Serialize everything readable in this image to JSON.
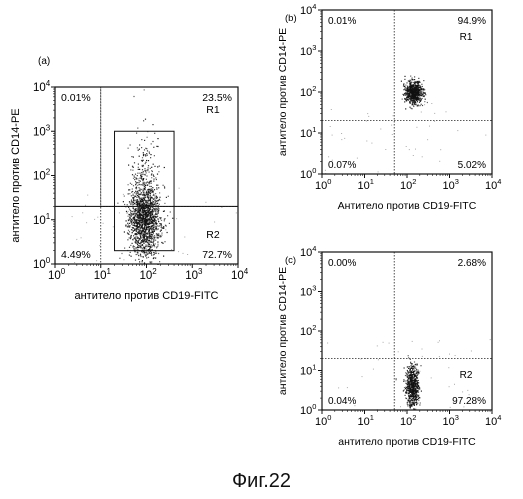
{
  "caption": "Фиг.22",
  "chart_data": [
    {
      "type": "scatter",
      "panel_label": "(a)",
      "xlabel": "антитело против CD19-FITC",
      "ylabel": "антитело против CD14-PE",
      "x_scale": "log",
      "y_scale": "log",
      "xlim": [
        1,
        10000
      ],
      "ylim": [
        1,
        10000
      ],
      "x_ticks": [
        "10^0",
        "10^1",
        "10^2",
        "10^3",
        "10^4"
      ],
      "y_ticks": [
        "10^0",
        "10^1",
        "10^2",
        "10^3",
        "10^4"
      ],
      "quadrant_split": {
        "x": 10,
        "y": 20
      },
      "quadrant_percentages": {
        "upper_left": "0.01%",
        "upper_right": "23.5%",
        "lower_left": "4.49%",
        "lower_right": "72.7%"
      },
      "gates": [
        {
          "name": "R1",
          "style": "dotted",
          "x_range": [
            10,
            10000
          ],
          "y_range": [
            20,
            10000
          ]
        },
        {
          "name": "R2",
          "style": "solid",
          "x_range": [
            20,
            400
          ],
          "y_range": [
            2,
            1000
          ]
        }
      ],
      "gate_labels": [
        "R1",
        "R2"
      ],
      "population_centers": [
        {
          "x": 90,
          "y": 8
        }
      ]
    },
    {
      "type": "scatter",
      "panel_label": "(b)",
      "xlabel": "Антитело против CD19-FITC",
      "ylabel": "антитело против CD14-PE",
      "x_scale": "log",
      "y_scale": "log",
      "xlim": [
        1,
        10000
      ],
      "ylim": [
        1,
        10000
      ],
      "x_ticks": [
        "10^0",
        "10^1",
        "10^2",
        "10^3",
        "10^4"
      ],
      "y_ticks": [
        "10^0",
        "10^1",
        "10^2",
        "10^3",
        "10^4"
      ],
      "quadrant_split": {
        "x": 50,
        "y": 20
      },
      "quadrant_percentages": {
        "upper_left": "0.01%",
        "upper_right": "94.9%",
        "lower_left": "0.07%",
        "lower_right": "5.02%"
      },
      "gate_labels": [
        "R1"
      ],
      "population_centers": [
        {
          "x": 140,
          "y": 100
        }
      ]
    },
    {
      "type": "scatter",
      "panel_label": "(c)",
      "xlabel": "антитело против CD19-FITC",
      "ylabel": "антитело против CD14-PE",
      "x_scale": "log",
      "y_scale": "log",
      "xlim": [
        1,
        10000
      ],
      "ylim": [
        1,
        10000
      ],
      "x_ticks": [
        "10^0",
        "10^1",
        "10^2",
        "10^3",
        "10^4"
      ],
      "y_ticks": [
        "10^0",
        "10^1",
        "10^2",
        "10^3",
        "10^4"
      ],
      "quadrant_split": {
        "x": 50,
        "y": 20
      },
      "quadrant_percentages": {
        "upper_left": "0.00%",
        "upper_right": "2.68%",
        "lower_left": "0.04%",
        "lower_right": "97.28%"
      },
      "gate_labels": [
        "R2"
      ],
      "population_centers": [
        {
          "x": 130,
          "y": 4
        }
      ]
    }
  ]
}
